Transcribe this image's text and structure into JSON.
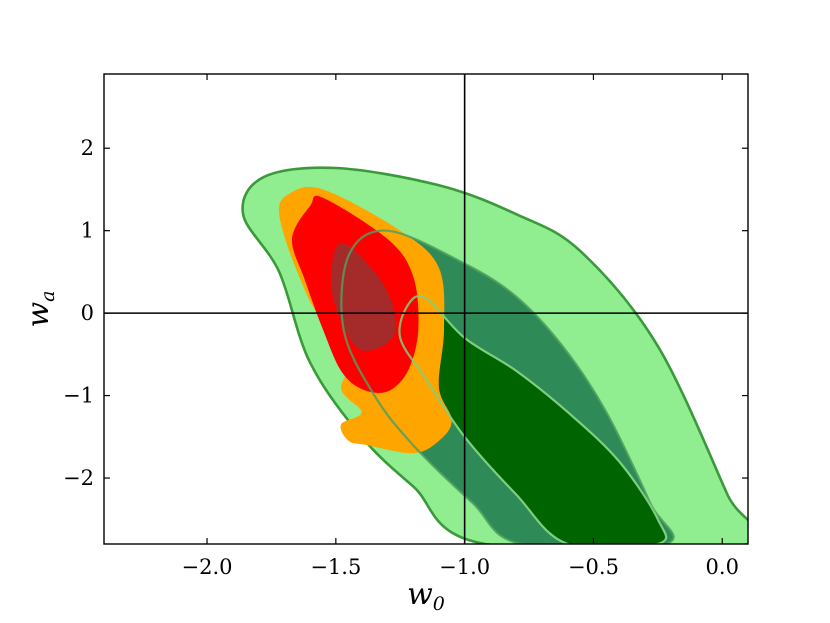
{
  "chart_data": {
    "type": "contour",
    "xlabel": "w",
    "xlabel_sub": "0",
    "ylabel": "w",
    "ylabel_sub": "a",
    "xlim": [
      -2.4,
      0.1
    ],
    "ylim": [
      -2.8,
      2.9
    ],
    "xticks": [
      -2.0,
      -1.5,
      -1.0,
      -0.5,
      0.0
    ],
    "xtick_labels": [
      "−2.0",
      "−1.5",
      "−1.0",
      "−0.5",
      "0.0"
    ],
    "yticks": [
      2,
      1,
      0,
      -1,
      -2
    ],
    "ytick_labels": [
      "2",
      "1",
      "0",
      "−1",
      "−2"
    ],
    "reference_lines": {
      "x": -1.0,
      "y": 0.0
    },
    "grid": false,
    "colors": {
      "green_outer": "#90EE90",
      "green_mid": "#2E8B57",
      "green_inner": "#006400",
      "green_edge": "#3a9a3a",
      "orange": "#FFA500",
      "red": "#FF0000",
      "brown": "#A52A2A"
    },
    "series": [
      {
        "role": "green-95",
        "points": [
          [
            -1.5,
            1.76
          ],
          [
            -1.1,
            1.55
          ],
          [
            -0.8,
            1.2
          ],
          [
            -0.55,
            0.75
          ],
          [
            -0.25,
            -0.4
          ],
          [
            0.02,
            -2.2
          ],
          [
            0.1,
            -2.8
          ],
          [
            -0.92,
            -2.8
          ],
          [
            -1.2,
            -2.1
          ],
          [
            -1.4,
            -1.5
          ],
          [
            -1.6,
            -0.6
          ],
          [
            -1.72,
            0.5
          ],
          [
            -1.86,
            1.2
          ],
          [
            -1.78,
            1.65
          ]
        ]
      },
      {
        "role": "green-68",
        "points": [
          [
            -1.3,
            1.0
          ],
          [
            -1.0,
            0.6
          ],
          [
            -0.8,
            0.2
          ],
          [
            -0.62,
            -0.4
          ],
          [
            -0.45,
            -1.2
          ],
          [
            -0.28,
            -2.3
          ],
          [
            -0.22,
            -2.8
          ],
          [
            -0.78,
            -2.8
          ],
          [
            -0.97,
            -2.3
          ],
          [
            -1.2,
            -1.6
          ],
          [
            -1.35,
            -1.0
          ],
          [
            -1.47,
            -0.2
          ],
          [
            -1.45,
            0.7
          ]
        ]
      },
      {
        "role": "green-inner",
        "points": [
          [
            -1.15,
            0.18
          ],
          [
            -1.0,
            -0.3
          ],
          [
            -0.8,
            -0.7
          ],
          [
            -0.6,
            -1.2
          ],
          [
            -0.4,
            -1.8
          ],
          [
            -0.25,
            -2.5
          ],
          [
            -0.25,
            -2.8
          ],
          [
            -0.6,
            -2.8
          ],
          [
            -0.8,
            -2.2
          ],
          [
            -1.0,
            -1.5
          ],
          [
            -1.15,
            -0.8
          ],
          [
            -1.25,
            -0.3
          ],
          [
            -1.22,
            0.1
          ]
        ]
      },
      {
        "role": "orange-95",
        "points": [
          [
            -1.55,
            1.5
          ],
          [
            -1.25,
            1.0
          ],
          [
            -1.1,
            0.55
          ],
          [
            -1.08,
            -0.2
          ],
          [
            -1.1,
            -0.9
          ],
          [
            -1.05,
            -1.3
          ],
          [
            -1.1,
            -1.55
          ],
          [
            -1.2,
            -1.7
          ],
          [
            -1.38,
            -1.6
          ],
          [
            -1.45,
            -1.55
          ],
          [
            -1.48,
            -1.35
          ],
          [
            -1.4,
            -1.2
          ],
          [
            -1.48,
            -0.9
          ],
          [
            -1.4,
            -0.4
          ],
          [
            -1.55,
            -0.1
          ],
          [
            -1.65,
            0.5
          ],
          [
            -1.72,
            1.2
          ],
          [
            -1.68,
            1.45
          ]
        ]
      },
      {
        "role": "red-68",
        "points": [
          [
            -1.55,
            1.4
          ],
          [
            -1.3,
            0.9
          ],
          [
            -1.2,
            0.45
          ],
          [
            -1.18,
            -0.2
          ],
          [
            -1.22,
            -0.7
          ],
          [
            -1.3,
            -0.95
          ],
          [
            -1.4,
            -0.92
          ],
          [
            -1.48,
            -0.7
          ],
          [
            -1.55,
            -0.2
          ],
          [
            -1.62,
            0.4
          ],
          [
            -1.67,
            0.9
          ],
          [
            -1.6,
            1.3
          ]
        ]
      },
      {
        "role": "brown-inner",
        "points": [
          [
            -1.48,
            0.85
          ],
          [
            -1.35,
            0.5
          ],
          [
            -1.28,
            0.1
          ],
          [
            -1.28,
            -0.3
          ],
          [
            -1.4,
            -0.45
          ],
          [
            -1.48,
            -0.1
          ],
          [
            -1.52,
            0.4
          ]
        ]
      }
    ]
  }
}
